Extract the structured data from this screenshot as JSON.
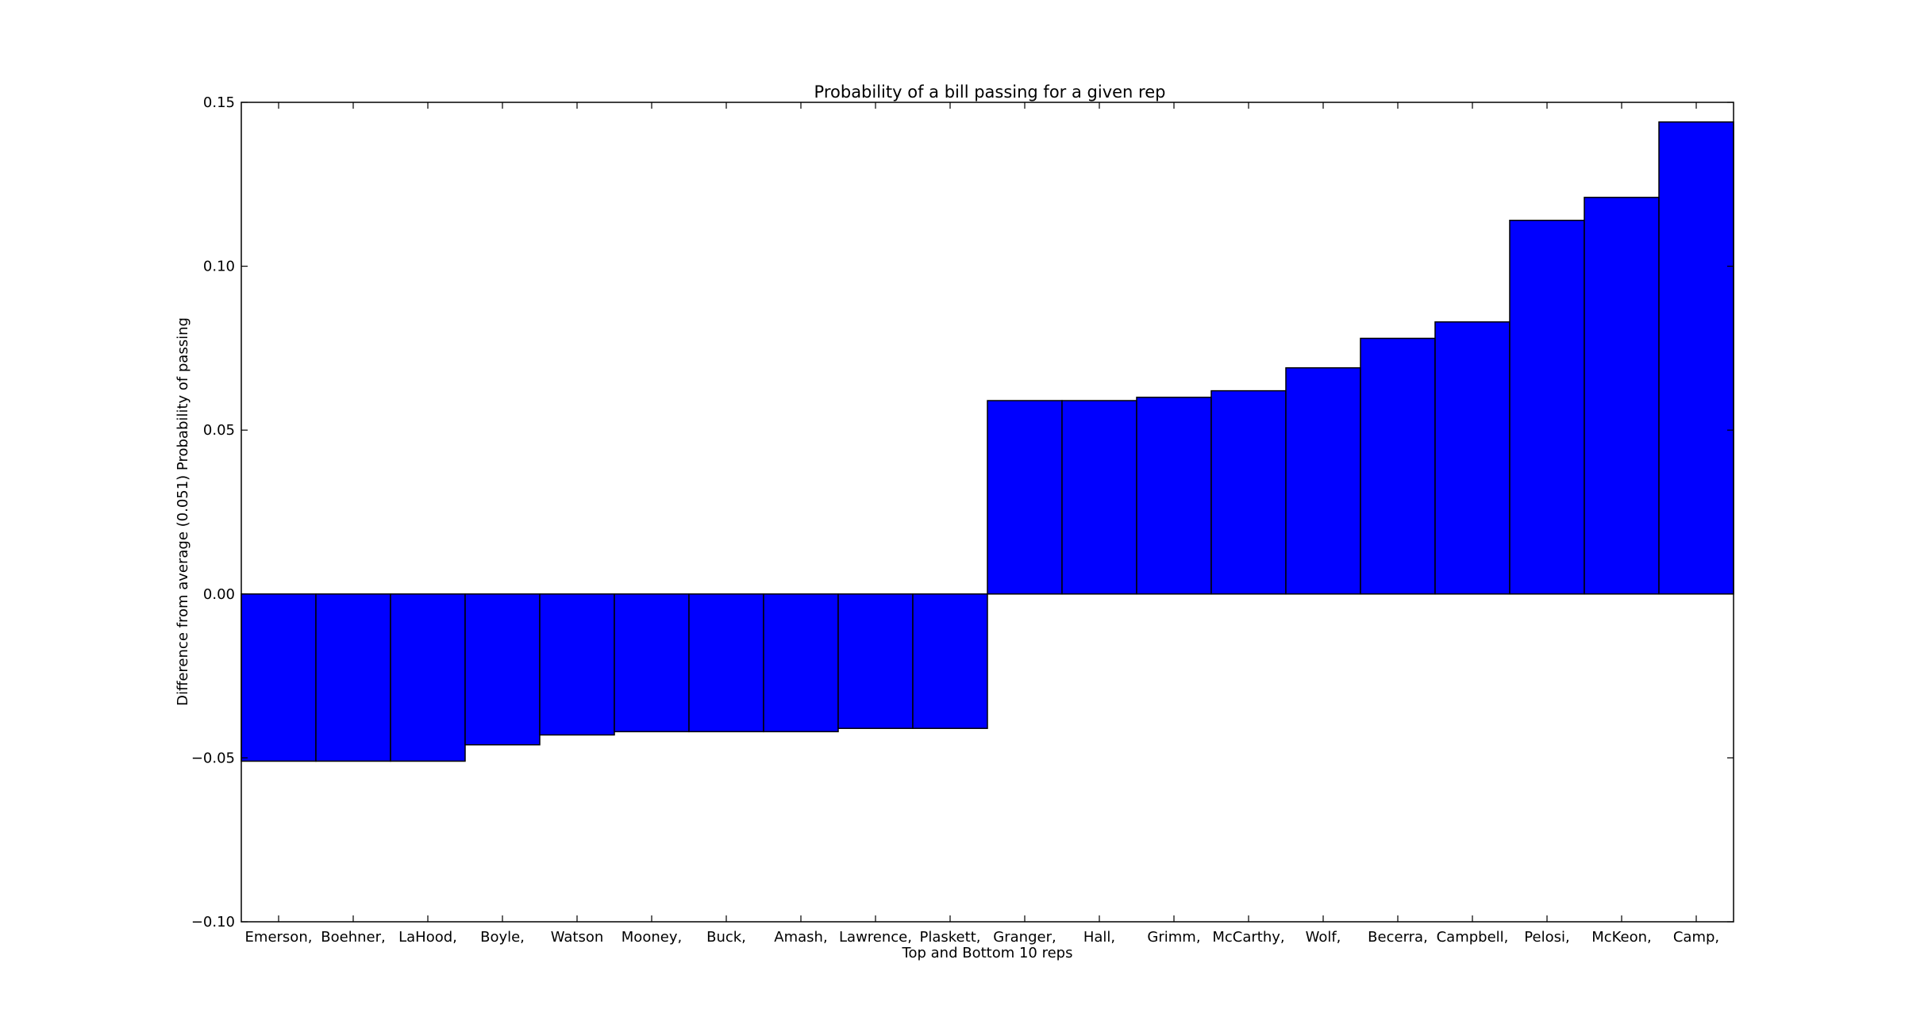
{
  "chart_data": {
    "type": "bar",
    "title": "Probability of a bill passing for a given rep",
    "xlabel": "Top and Bottom 10 reps",
    "ylabel": "Difference from average (0.051) Probability of passing",
    "ylim": [
      -0.1,
      0.15
    ],
    "yticks": [
      "0.15",
      "0.10",
      "0.05",
      "0.00",
      "−0.05",
      "−0.10"
    ],
    "ytick_values": [
      0.15,
      0.1,
      0.05,
      0.0,
      -0.05,
      -0.1
    ],
    "categories": [
      "Emerson,",
      "Boehner,",
      "LaHood,",
      "Boyle,",
      "Watson",
      "Mooney,",
      "Buck,",
      "Amash,",
      "Lawrence,",
      "Plaskett,",
      "Granger,",
      "Hall,",
      "Grimm,",
      "McCarthy,",
      "Wolf,",
      "Becerra,",
      "Campbell,",
      "Pelosi,",
      "McKeon,",
      "Camp,"
    ],
    "values": [
      -0.051,
      -0.051,
      -0.051,
      -0.046,
      -0.043,
      -0.042,
      -0.042,
      -0.042,
      -0.041,
      -0.041,
      0.059,
      0.059,
      0.06,
      0.062,
      0.069,
      0.078,
      0.083,
      0.114,
      0.121,
      0.144
    ],
    "bar_color": "#0000ff",
    "grid": false,
    "legend": "none"
  }
}
